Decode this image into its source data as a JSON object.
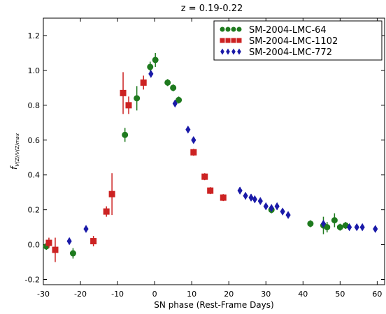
{
  "chart_data": {
    "type": "scatter",
    "title": "z = 0.19-0.22",
    "xlabel": "SN phase (Rest-Frame Days)",
    "ylabel": "f",
    "ylabel_sub": "V(Z)/V(Z)max",
    "xlim": [
      -30,
      62
    ],
    "ylim": [
      -0.23,
      1.3
    ],
    "xticks": [
      -30,
      -20,
      -10,
      0,
      10,
      20,
      30,
      40,
      50,
      60
    ],
    "xtick_labels": [
      "-30",
      "-20",
      "-10",
      "0",
      "10",
      "20",
      "30",
      "40",
      "50",
      "60"
    ],
    "yticks": [
      -0.2,
      0.0,
      0.2,
      0.4,
      0.6,
      0.8,
      1.0,
      1.2
    ],
    "ytick_labels": [
      "-0.2",
      "0.0",
      "0.2",
      "0.4",
      "0.6",
      "0.8",
      "1.0",
      "1.2"
    ],
    "grid": false,
    "legend_position": "top-right",
    "series": [
      {
        "name": "SM-2004-LMC-64",
        "color": "#1e7a1e",
        "marker": "circle",
        "points": [
          {
            "x": -29.2,
            "y": -0.01,
            "err": 0.02
          },
          {
            "x": -22.0,
            "y": -0.05,
            "err": 0.03
          },
          {
            "x": -8.0,
            "y": 0.63,
            "err": 0.04
          },
          {
            "x": -4.8,
            "y": 0.84,
            "err": 0.07
          },
          {
            "x": -1.2,
            "y": 1.02,
            "err": 0.03
          },
          {
            "x": 0.2,
            "y": 1.06,
            "err": 0.04
          },
          {
            "x": 3.5,
            "y": 0.93,
            "err": 0.02
          },
          {
            "x": 5.0,
            "y": 0.9,
            "err": 0.02
          },
          {
            "x": 6.5,
            "y": 0.83,
            "err": 0.02
          },
          {
            "x": 31.5,
            "y": 0.2,
            "err": 0.02
          },
          {
            "x": 42.0,
            "y": 0.12,
            "err": 0.02
          },
          {
            "x": 45.5,
            "y": 0.11,
            "err": 0.05
          },
          {
            "x": 46.5,
            "y": 0.1,
            "err": 0.03
          },
          {
            "x": 48.5,
            "y": 0.14,
            "err": 0.04
          },
          {
            "x": 50.0,
            "y": 0.1,
            "err": 0.02
          },
          {
            "x": 51.5,
            "y": 0.11,
            "err": 0.02
          }
        ]
      },
      {
        "name": "SM-2004-LMC-1102",
        "color": "#cc2222",
        "marker": "square",
        "points": [
          {
            "x": -28.5,
            "y": 0.01,
            "err": 0.03
          },
          {
            "x": -26.8,
            "y": -0.03,
            "err": 0.07
          },
          {
            "x": -16.5,
            "y": 0.02,
            "err": 0.03
          },
          {
            "x": -13.0,
            "y": 0.19,
            "err": 0.03
          },
          {
            "x": -11.5,
            "y": 0.29,
            "err": 0.12
          },
          {
            "x": -8.5,
            "y": 0.87,
            "err": 0.12
          },
          {
            "x": -7.0,
            "y": 0.8,
            "err": 0.05
          },
          {
            "x": -3.0,
            "y": 0.93,
            "err": 0.04
          },
          {
            "x": 10.5,
            "y": 0.53,
            "err": 0.02
          },
          {
            "x": 13.5,
            "y": 0.39,
            "err": 0.02
          },
          {
            "x": 15.0,
            "y": 0.31,
            "err": 0.02
          },
          {
            "x": 18.5,
            "y": 0.27,
            "err": 0.02
          }
        ]
      },
      {
        "name": "SM-2004-LMC-772",
        "color": "#1a1aa8",
        "marker": "diamond",
        "points": [
          {
            "x": -23.0,
            "y": 0.02,
            "err": 0.01
          },
          {
            "x": -18.5,
            "y": 0.09,
            "err": 0.01
          },
          {
            "x": -1.0,
            "y": 0.98,
            "err": 0.02
          },
          {
            "x": 5.5,
            "y": 0.81,
            "err": 0.02
          },
          {
            "x": 9.0,
            "y": 0.66,
            "err": 0.01
          },
          {
            "x": 10.5,
            "y": 0.6,
            "err": 0.01
          },
          {
            "x": 23.0,
            "y": 0.31,
            "err": 0.02
          },
          {
            "x": 24.5,
            "y": 0.28,
            "err": 0.02
          },
          {
            "x": 26.0,
            "y": 0.27,
            "err": 0.02
          },
          {
            "x": 27.0,
            "y": 0.26,
            "err": 0.02
          },
          {
            "x": 28.5,
            "y": 0.25,
            "err": 0.02
          },
          {
            "x": 30.0,
            "y": 0.22,
            "err": 0.02
          },
          {
            "x": 31.5,
            "y": 0.21,
            "err": 0.02
          },
          {
            "x": 33.0,
            "y": 0.22,
            "err": 0.02
          },
          {
            "x": 34.5,
            "y": 0.19,
            "err": 0.01
          },
          {
            "x": 36.0,
            "y": 0.17,
            "err": 0.01
          },
          {
            "x": 45.5,
            "y": 0.12,
            "err": 0.01
          },
          {
            "x": 52.5,
            "y": 0.1,
            "err": 0.01
          },
          {
            "x": 54.5,
            "y": 0.1,
            "err": 0.01
          },
          {
            "x": 56.0,
            "y": 0.1,
            "err": 0.01
          },
          {
            "x": 59.5,
            "y": 0.09,
            "err": 0.01
          }
        ]
      }
    ]
  }
}
